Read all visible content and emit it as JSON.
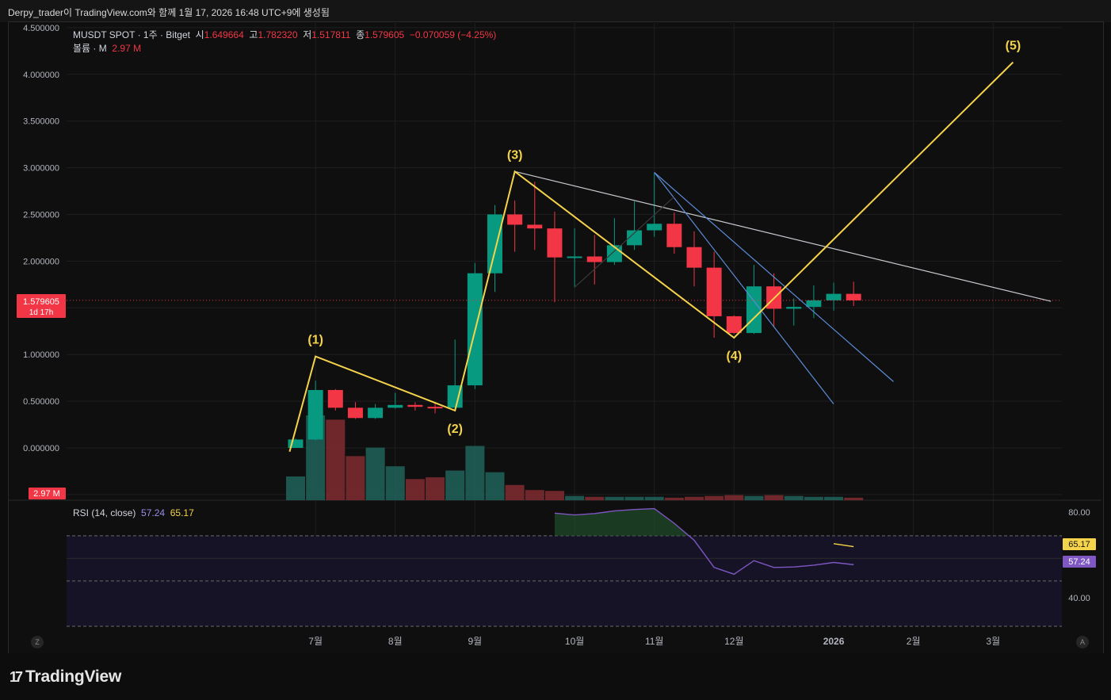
{
  "header": {
    "caption": "Derpy_trader이 TradingView.com와 함께 1월 17, 2026 16:48 UTC+9에 생성됨"
  },
  "legend": {
    "symbol": "MUSDT SPOT · 1주 · Bitget",
    "o_label": "시",
    "o_value": "1.649664",
    "h_label": "고",
    "h_value": "1.782320",
    "l_label": "저",
    "l_value": "1.517811",
    "c_label": "종",
    "c_value": "1.579605",
    "change": "−0.070059 (−4.25%)",
    "volume_label": "볼륨 · M",
    "volume_value": "2.97 M"
  },
  "price_tag": {
    "price": "1.579605",
    "countdown": "1d 17h"
  },
  "volume_tag": "2.97 M",
  "rsi_legend": {
    "label": "RSI (14, close)",
    "rsi_value": "57.24",
    "ma_value": "65.17"
  },
  "rsi_axis": {
    "upper": "80.00",
    "lower": "40.00",
    "tag_rsi": "57.24",
    "tag_ma": "65.17"
  },
  "corner_left": "Z",
  "corner_right": "A",
  "branding": "TradingView",
  "colors": {
    "up": "#089981",
    "down": "#f23645",
    "wave": "#f5d34a",
    "trend": "#5b8bd6",
    "rsi": "#7e57c2"
  },
  "chart_data": {
    "type": "candlestick",
    "interval": "1 week",
    "ylim": [
      -0.5,
      4.5
    ],
    "yticks": [
      "4.500000",
      "4.000000",
      "3.500000",
      "3.000000",
      "2.500000",
      "2.000000",
      "1.500000",
      "1.000000",
      "0.500000",
      "0.000000",
      "-0.5"
    ],
    "x_ticks": [
      "7월",
      "8월",
      "9월",
      "10월",
      "11월",
      "12월",
      "2026",
      "2월",
      "3월"
    ],
    "candles": [
      {
        "o": 0.0,
        "h": 0.1,
        "l": 0.0,
        "c": 0.09
      },
      {
        "o": 0.09,
        "h": 0.72,
        "l": 0.08,
        "c": 0.62
      },
      {
        "o": 0.62,
        "h": 0.63,
        "l": 0.4,
        "c": 0.43
      },
      {
        "o": 0.43,
        "h": 0.49,
        "l": 0.31,
        "c": 0.32
      },
      {
        "o": 0.32,
        "h": 0.47,
        "l": 0.31,
        "c": 0.43
      },
      {
        "o": 0.43,
        "h": 0.59,
        "l": 0.42,
        "c": 0.46
      },
      {
        "o": 0.46,
        "h": 0.49,
        "l": 0.4,
        "c": 0.44
      },
      {
        "o": 0.44,
        "h": 0.48,
        "l": 0.37,
        "c": 0.43
      },
      {
        "o": 0.43,
        "h": 1.16,
        "l": 0.41,
        "c": 0.67
      },
      {
        "o": 0.67,
        "h": 1.98,
        "l": 0.63,
        "c": 1.87
      },
      {
        "o": 1.87,
        "h": 2.6,
        "l": 1.67,
        "c": 2.5
      },
      {
        "o": 2.5,
        "h": 2.65,
        "l": 2.1,
        "c": 2.39
      },
      {
        "o": 2.39,
        "h": 2.85,
        "l": 2.12,
        "c": 2.35
      },
      {
        "o": 2.35,
        "h": 2.53,
        "l": 1.56,
        "c": 2.04
      },
      {
        "o": 2.04,
        "h": 2.35,
        "l": 1.72,
        "c": 2.05
      },
      {
        "o": 2.05,
        "h": 2.28,
        "l": 1.75,
        "c": 1.99
      },
      {
        "o": 1.99,
        "h": 2.46,
        "l": 1.96,
        "c": 2.17
      },
      {
        "o": 2.17,
        "h": 2.64,
        "l": 2.12,
        "c": 2.33
      },
      {
        "o": 2.33,
        "h": 2.95,
        "l": 2.26,
        "c": 2.4
      },
      {
        "o": 2.4,
        "h": 2.52,
        "l": 2.08,
        "c": 2.15
      },
      {
        "o": 2.15,
        "h": 2.32,
        "l": 1.73,
        "c": 1.93
      },
      {
        "o": 1.93,
        "h": 2.1,
        "l": 1.18,
        "c": 1.41
      },
      {
        "o": 1.41,
        "h": 1.42,
        "l": 1.22,
        "c": 1.23
      },
      {
        "o": 1.23,
        "h": 1.96,
        "l": 1.22,
        "c": 1.73
      },
      {
        "o": 1.73,
        "h": 1.87,
        "l": 1.29,
        "c": 1.49
      },
      {
        "o": 1.49,
        "h": 1.6,
        "l": 1.31,
        "c": 1.51
      },
      {
        "o": 1.51,
        "h": 1.74,
        "l": 1.39,
        "c": 1.58
      },
      {
        "o": 1.58,
        "h": 1.77,
        "l": 1.47,
        "c": 1.65
      },
      {
        "o": 1.65,
        "h": 1.78,
        "l": 1.52,
        "c": 1.58
      }
    ],
    "volume_relative": [
      0.28,
      1.0,
      0.95,
      0.52,
      0.62,
      0.4,
      0.25,
      0.27,
      0.35,
      0.64,
      0.33,
      0.18,
      0.12,
      0.11,
      0.05,
      0.04,
      0.04,
      0.04,
      0.04,
      0.03,
      0.04,
      0.05,
      0.06,
      0.05,
      0.06,
      0.05,
      0.04,
      0.04,
      0.03
    ],
    "elliott_wave": [
      {
        "label": "",
        "week": -0.3,
        "price": -0.04
      },
      {
        "label": "(1)",
        "week": 1.0,
        "price": 0.98
      },
      {
        "label": "(2)",
        "week": 8.0,
        "price": 0.4
      },
      {
        "label": "(3)",
        "week": 11.0,
        "price": 2.96
      },
      {
        "label": "(4)",
        "week": 22.0,
        "price": 1.18
      },
      {
        "label": "(5)",
        "week": 36.0,
        "price": 4.13
      }
    ],
    "trendlines": [
      {
        "from": {
          "week": 11.0,
          "price": 2.96
        },
        "to": {
          "week": 37.9,
          "price": 1.57
        },
        "color": "#c8c8d0"
      },
      {
        "from": {
          "week": 18.0,
          "price": 2.95
        },
        "to": {
          "week": 27.0,
          "price": 0.47
        },
        "color": "#5b8bd6"
      },
      {
        "from": {
          "week": 18.0,
          "price": 2.95
        },
        "to": {
          "week": 30.0,
          "price": 0.71
        },
        "color": "#5b8bd6"
      },
      {
        "from": {
          "week": 14.0,
          "price": 1.72
        },
        "to": {
          "week": 19.0,
          "price": 2.69
        },
        "color": "#3a3a3a"
      }
    ],
    "rsi": {
      "ylim": [
        30,
        85
      ],
      "levels": [
        70,
        60,
        50,
        30
      ],
      "weeks": [
        13,
        14,
        15,
        16,
        17,
        18,
        19,
        20,
        21,
        22,
        23,
        24,
        25,
        26,
        27,
        28
      ],
      "values": [
        80.0,
        79.2,
        79.8,
        81.0,
        81.6,
        82.0,
        75.5,
        68.0,
        56.0,
        53.0,
        59.0,
        56.0,
        56.2,
        57.0,
        58.2,
        57.24
      ],
      "ma_weeks": [
        27,
        28
      ],
      "ma_values": [
        66.5,
        65.17
      ]
    }
  }
}
